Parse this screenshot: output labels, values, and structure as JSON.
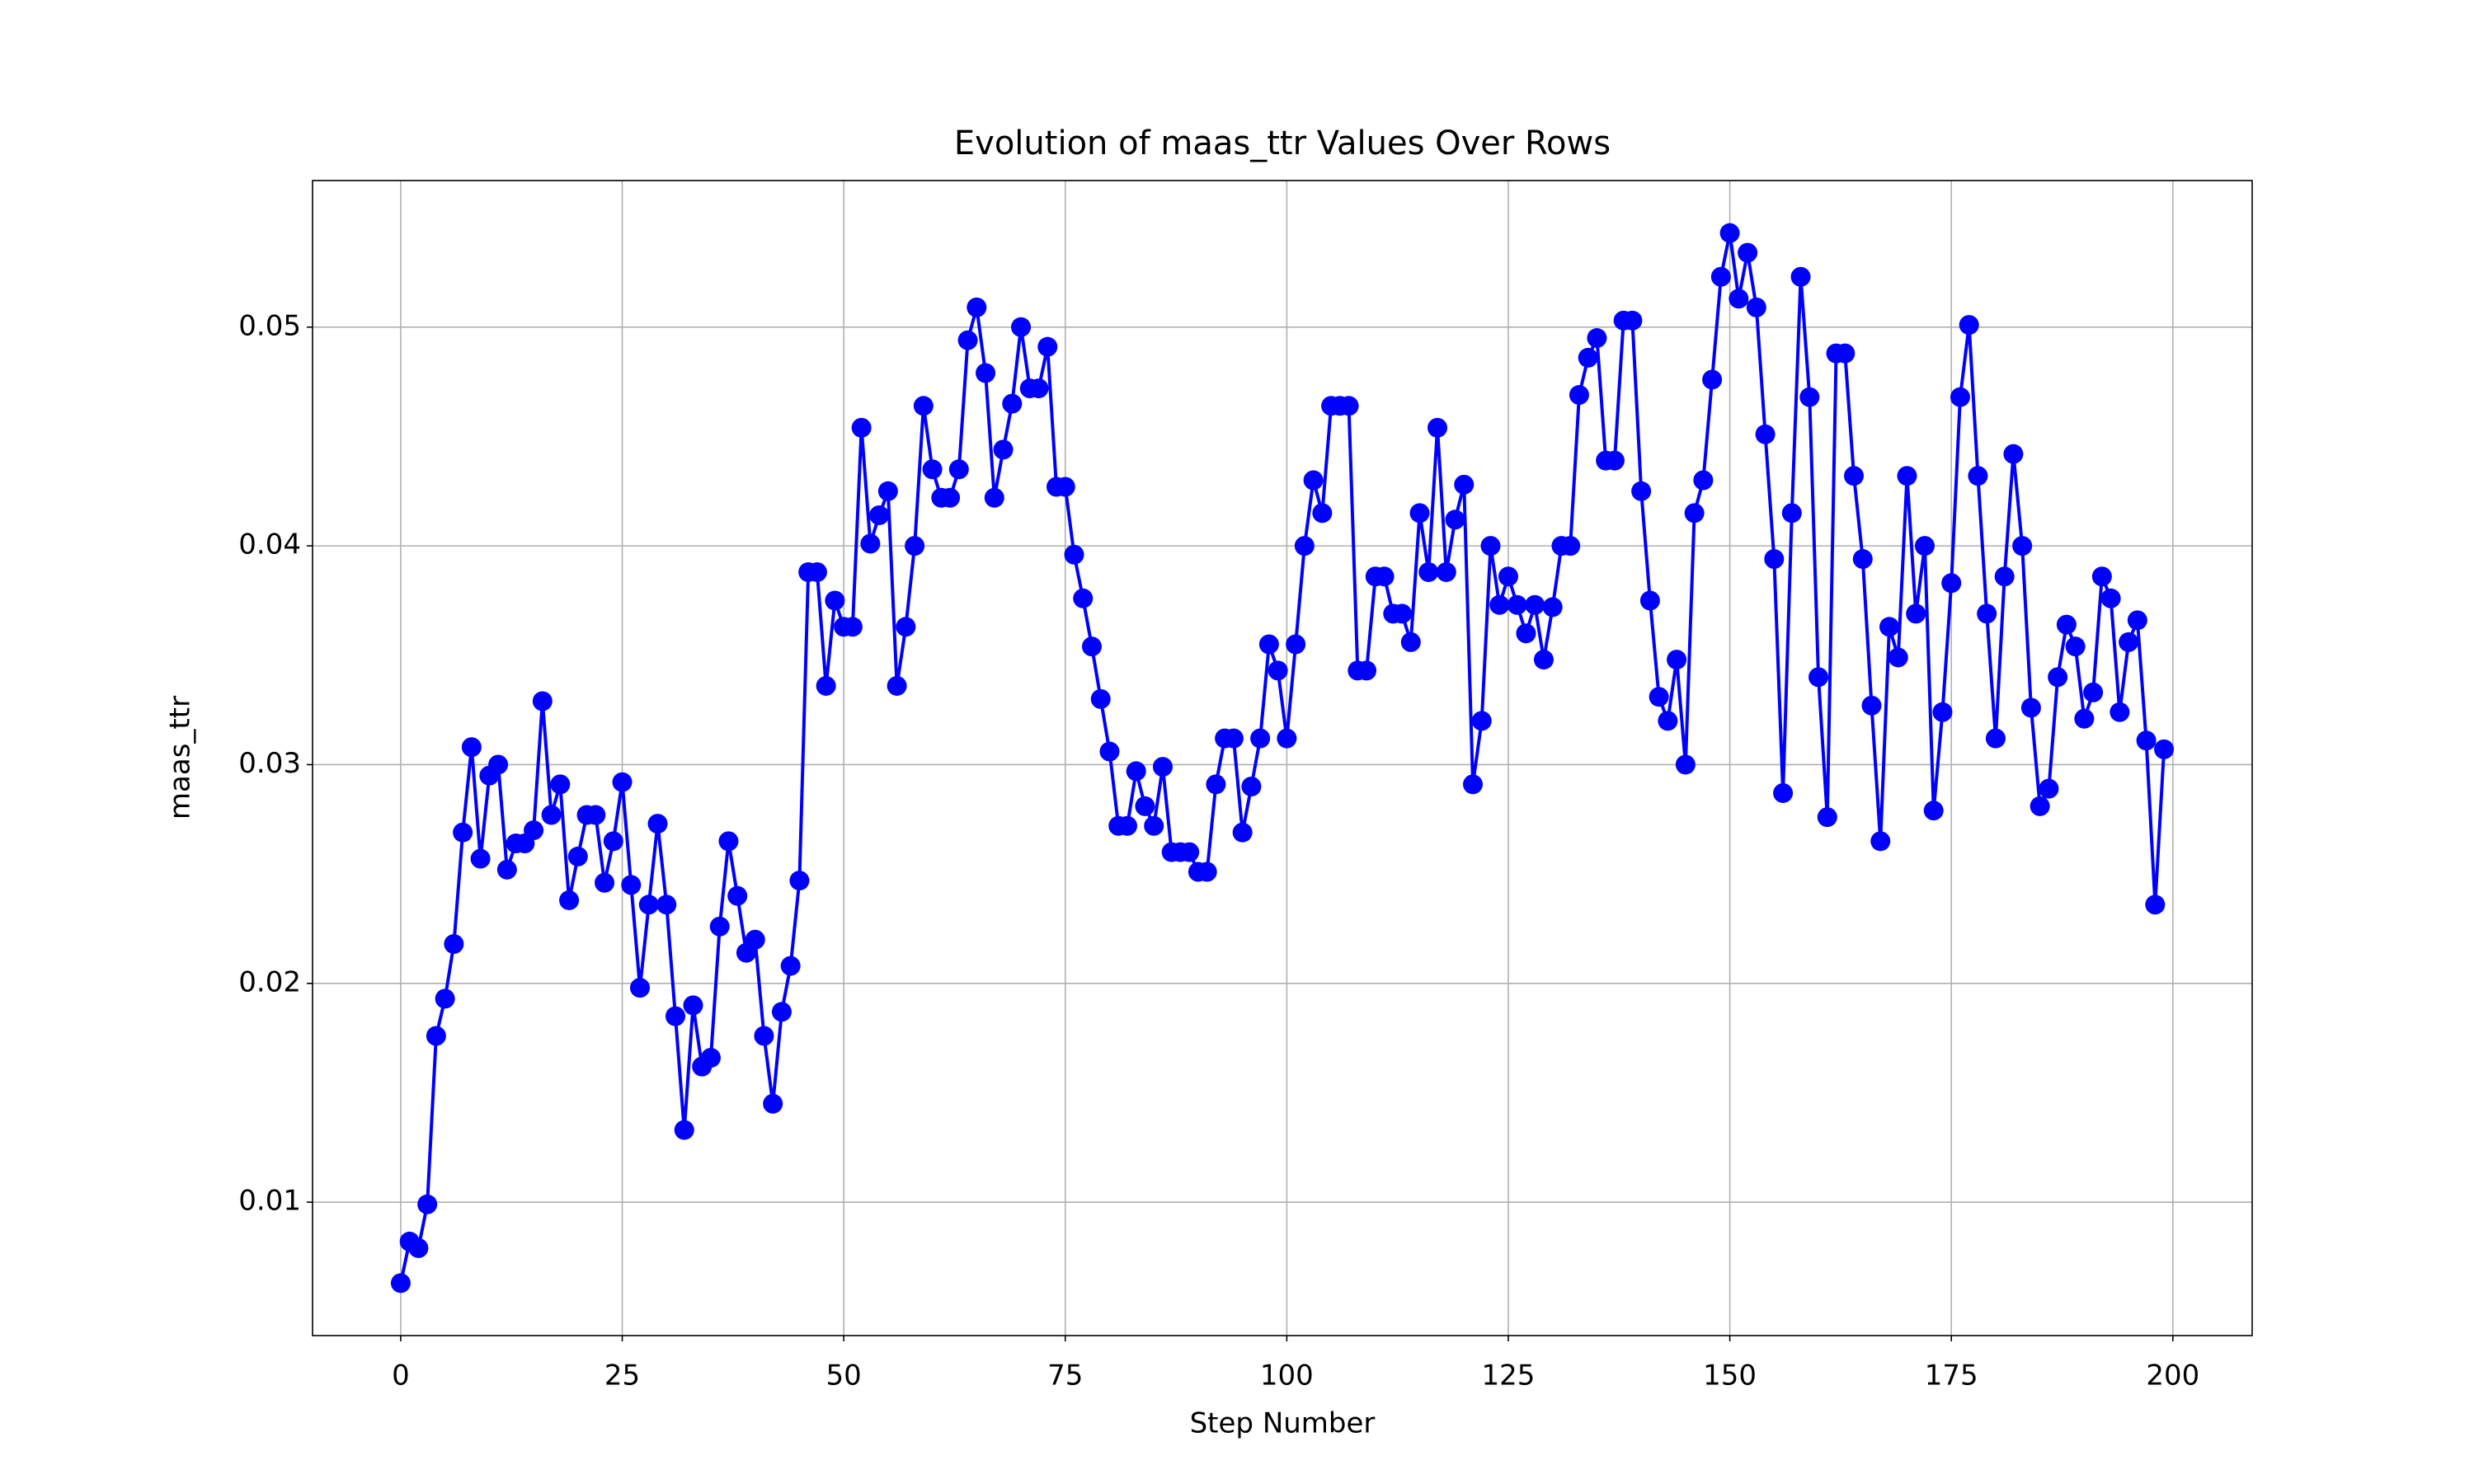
{
  "chart_data": {
    "type": "line",
    "title": "Evolution of maas_ttr Values Over Rows",
    "xlabel": "Step Number",
    "ylabel": "maas_ttr",
    "x": [
      0,
      1,
      2,
      3,
      4,
      5,
      6,
      7,
      8,
      9,
      10,
      11,
      12,
      13,
      14,
      15,
      16,
      17,
      18,
      19,
      20,
      21,
      22,
      23,
      24,
      25,
      26,
      27,
      28,
      29,
      30,
      31,
      32,
      33,
      34,
      35,
      36,
      37,
      38,
      39,
      40,
      41,
      42,
      43,
      44,
      45,
      46,
      47,
      48,
      49,
      50,
      51,
      52,
      53,
      54,
      55,
      56,
      57,
      58,
      59,
      60,
      61,
      62,
      63,
      64,
      65,
      66,
      67,
      68,
      69,
      70,
      71,
      72,
      73,
      74,
      75,
      76,
      77,
      78,
      79,
      80,
      81,
      82,
      83,
      84,
      85,
      86,
      87,
      88,
      89,
      90,
      91,
      92,
      93,
      94,
      95,
      96,
      97,
      98,
      99,
      100,
      101,
      102,
      103,
      104,
      105,
      106,
      107,
      108,
      109,
      110,
      111,
      112,
      113,
      114,
      115,
      116,
      117,
      118,
      119,
      120,
      121,
      122,
      123,
      124,
      125,
      126,
      127,
      128,
      129,
      130,
      131,
      132,
      133,
      134,
      135,
      136,
      137,
      138,
      139,
      140,
      141,
      142,
      143,
      144,
      145,
      146,
      147,
      148,
      149,
      150,
      151,
      152,
      153,
      154,
      155,
      156,
      157,
      158,
      159,
      160,
      161,
      162,
      163,
      164,
      165,
      166,
      167,
      168,
      169,
      170,
      171,
      172,
      173,
      174,
      175,
      176,
      177,
      178,
      179,
      180,
      181,
      182,
      183,
      184,
      185,
      186,
      187,
      188,
      189,
      190,
      191,
      192,
      193,
      194,
      195,
      196,
      197,
      198,
      199
    ],
    "series": [
      {
        "color": "#0000ff",
        "values": [
          0.0063,
          0.0082,
          0.0079,
          0.0099,
          0.0176,
          0.0193,
          0.0218,
          0.0269,
          0.0308,
          0.0257,
          0.0295,
          0.03,
          0.0252,
          0.0264,
          0.0264,
          0.027,
          0.0329,
          0.0277,
          0.0291,
          0.0238,
          0.0258,
          0.0277,
          0.0277,
          0.0246,
          0.0265,
          0.0292,
          0.0245,
          0.0198,
          0.0236,
          0.0273,
          0.0236,
          0.0185,
          0.0133,
          0.019,
          0.0162,
          0.0166,
          0.0226,
          0.0265,
          0.024,
          0.0214,
          0.022,
          0.0176,
          0.0145,
          0.0187,
          0.0208,
          0.0247,
          0.0388,
          0.0388,
          0.0336,
          0.0375,
          0.0363,
          0.0363,
          0.0454,
          0.0401,
          0.0414,
          0.0425,
          0.0336,
          0.0363,
          0.04,
          0.0464,
          0.0435,
          0.0422,
          0.0422,
          0.0435,
          0.0494,
          0.0509,
          0.0479,
          0.0422,
          0.0444,
          0.0465,
          0.05,
          0.0472,
          0.0472,
          0.0491,
          0.0427,
          0.0427,
          0.0396,
          0.0376,
          0.0354,
          0.033,
          0.0306,
          0.0272,
          0.0272,
          0.0297,
          0.0281,
          0.0272,
          0.0299,
          0.026,
          0.026,
          0.026,
          0.0251,
          0.0251,
          0.0291,
          0.0312,
          0.0312,
          0.0269,
          0.029,
          0.0312,
          0.0355,
          0.0343,
          0.0312,
          0.0355,
          0.04,
          0.043,
          0.0415,
          0.0464,
          0.0464,
          0.0464,
          0.0343,
          0.0343,
          0.0386,
          0.0386,
          0.0369,
          0.0369,
          0.0356,
          0.0415,
          0.0388,
          0.0454,
          0.0388,
          0.0412,
          0.0428,
          0.0291,
          0.032,
          0.04,
          0.0373,
          0.0386,
          0.0373,
          0.036,
          0.0373,
          0.0348,
          0.0372,
          0.04,
          0.04,
          0.0469,
          0.0486,
          0.0495,
          0.0439,
          0.0439,
          0.0503,
          0.0503,
          0.0425,
          0.0375,
          0.0331,
          0.032,
          0.0348,
          0.03,
          0.0415,
          0.043,
          0.0476,
          0.0523,
          0.0543,
          0.0513,
          0.0534,
          0.0509,
          0.0451,
          0.0394,
          0.0287,
          0.0415,
          0.0523,
          0.0468,
          0.034,
          0.0276,
          0.0488,
          0.0488,
          0.0432,
          0.0394,
          0.0327,
          0.0265,
          0.0363,
          0.0349,
          0.0432,
          0.0369,
          0.04,
          0.0279,
          0.0324,
          0.0383,
          0.0468,
          0.0501,
          0.0432,
          0.0369,
          0.0312,
          0.0386,
          0.0442,
          0.04,
          0.0326,
          0.0281,
          0.0289,
          0.034,
          0.0364,
          0.0354,
          0.0321,
          0.0333,
          0.0386,
          0.0376,
          0.0324,
          0.0356,
          0.0366,
          0.0311,
          0.0236,
          0.0307
        ]
      }
    ],
    "xlim": [
      -9.95,
      208.95
    ],
    "xticks": [
      0,
      25,
      50,
      75,
      100,
      125,
      150,
      175,
      200
    ],
    "ylim": [
      0.0039,
      0.0567
    ],
    "yticks": [
      0.01,
      0.02,
      0.03,
      0.04,
      0.05
    ],
    "grid": true
  }
}
